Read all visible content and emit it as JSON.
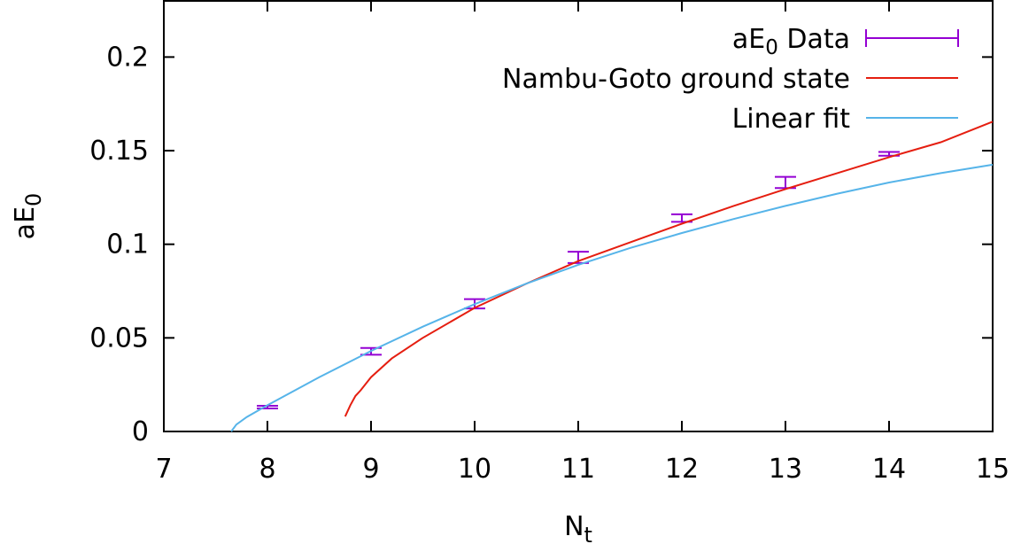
{
  "chart_data": {
    "type": "line",
    "xlabel": "N",
    "xlabel_sub": "t",
    "ylabel": "aE",
    "ylabel_sub": "0",
    "xlim": [
      7,
      15
    ],
    "ylim": [
      0,
      0.23
    ],
    "grid": false,
    "legend_position": "top-right",
    "x_ticks": [
      "7",
      "8",
      "9",
      "10",
      "11",
      "12",
      "13",
      "14",
      "15"
    ],
    "y_ticks": [
      "0",
      "0.05",
      "0.1",
      "0.15",
      "0.2"
    ],
    "series": [
      {
        "name": "aE",
        "name_sub": "0",
        "name_suffix": " Data",
        "kind": "errorbar",
        "color": "#9400d3",
        "points": [
          {
            "x": 8,
            "y": 0.013,
            "err": 0.0007
          },
          {
            "x": 9,
            "y": 0.0428,
            "err": 0.0018
          },
          {
            "x": 10,
            "y": 0.0682,
            "err": 0.0025
          },
          {
            "x": 11,
            "y": 0.093,
            "err": 0.003
          },
          {
            "x": 12,
            "y": 0.114,
            "err": 0.002
          },
          {
            "x": 13,
            "y": 0.133,
            "err": 0.003
          },
          {
            "x": 14,
            "y": 0.1483,
            "err": 0.001
          }
        ]
      },
      {
        "name": "Nambu-Goto ground state",
        "kind": "line",
        "color": "#e51e10",
        "x": [
          8.75,
          8.8,
          8.85,
          8.9,
          9.0,
          9.2,
          9.5,
          10.0,
          10.5,
          11.0,
          11.5,
          12.0,
          12.5,
          13.0,
          13.5,
          14.0,
          14.5,
          15.0
        ],
        "y": [
          0.008,
          0.014,
          0.019,
          0.022,
          0.029,
          0.039,
          0.05,
          0.066,
          0.079,
          0.091,
          0.101,
          0.111,
          0.1205,
          0.1295,
          0.138,
          0.1465,
          0.1545,
          0.1655
        ]
      },
      {
        "name": "Linear fit",
        "kind": "line",
        "color": "#56b4e9",
        "x": [
          7.65,
          7.7,
          7.8,
          8.0,
          8.5,
          9.0,
          9.5,
          10.0,
          10.5,
          11.0,
          11.5,
          12.0,
          12.5,
          13.0,
          13.5,
          14.0,
          14.5,
          15.0
        ],
        "y": [
          0.0,
          0.0037,
          0.0077,
          0.014,
          0.029,
          0.043,
          0.056,
          0.068,
          0.079,
          0.089,
          0.098,
          0.106,
          0.1135,
          0.1205,
          0.127,
          0.133,
          0.138,
          0.1425
        ]
      }
    ]
  }
}
